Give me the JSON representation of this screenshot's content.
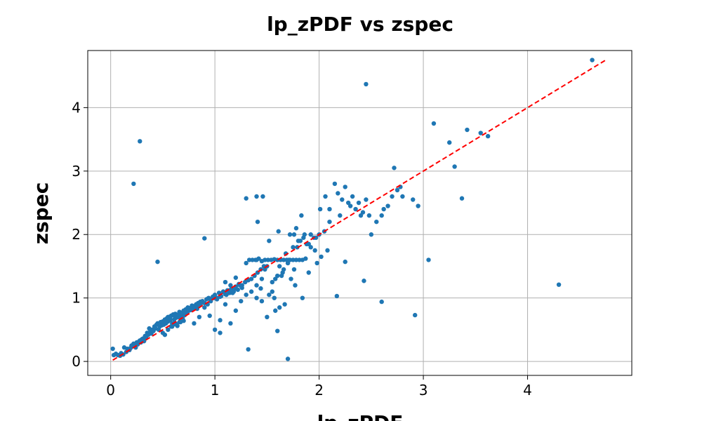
{
  "chart_data": {
    "type": "scatter",
    "title": "lp_zPDF vs zspec",
    "xlabel": "lp_zPDF",
    "ylabel": "zspec",
    "xlim": [
      -0.22,
      5.0
    ],
    "ylim": [
      -0.22,
      4.9
    ],
    "x_ticks": [
      0,
      1,
      2,
      3,
      4
    ],
    "y_ticks": [
      0,
      1,
      2,
      3,
      4
    ],
    "grid": true,
    "point_color": "#1f77b4",
    "reference_line": {
      "x": [
        0.02,
        4.75
      ],
      "y": [
        0.02,
        4.75
      ],
      "color": "#ff0000",
      "style": "dashed"
    },
    "x": [
      0.02,
      0.03,
      0.05,
      0.07,
      0.09,
      0.1,
      0.12,
      0.13,
      0.15,
      0.16,
      0.18,
      0.19,
      0.2,
      0.21,
      0.22,
      0.23,
      0.24,
      0.25,
      0.26,
      0.27,
      0.28,
      0.29,
      0.3,
      0.31,
      0.32,
      0.33,
      0.34,
      0.35,
      0.36,
      0.37,
      0.38,
      0.39,
      0.4,
      0.41,
      0.42,
      0.43,
      0.44,
      0.45,
      0.46,
      0.47,
      0.48,
      0.49,
      0.5,
      0.51,
      0.52,
      0.53,
      0.54,
      0.55,
      0.56,
      0.57,
      0.58,
      0.59,
      0.6,
      0.61,
      0.62,
      0.63,
      0.64,
      0.65,
      0.66,
      0.67,
      0.68,
      0.69,
      0.7,
      0.71,
      0.72,
      0.73,
      0.74,
      0.75,
      0.76,
      0.77,
      0.78,
      0.79,
      0.8,
      0.81,
      0.82,
      0.83,
      0.84,
      0.85,
      0.86,
      0.87,
      0.5,
      0.52,
      0.55,
      0.58,
      0.6,
      0.62,
      0.64,
      0.66,
      0.68,
      0.7,
      0.55,
      0.57,
      0.59,
      0.61,
      0.63,
      0.65,
      0.67,
      0.69,
      0.71,
      0.73,
      0.88,
      0.9,
      0.92,
      0.94,
      0.96,
      0.98,
      1.0,
      1.02,
      1.04,
      1.06,
      1.08,
      1.1,
      1.12,
      1.14,
      1.16,
      1.18,
      1.2,
      1.22,
      1.24,
      1.26,
      0.9,
      0.93,
      0.96,
      0.99,
      1.02,
      1.05,
      1.08,
      1.11,
      1.14,
      1.17,
      1.2,
      1.23,
      1.26,
      1.29,
      1.32,
      1.35,
      1.38,
      1.41,
      1.44,
      1.47,
      1.3,
      1.33,
      1.36,
      1.39,
      1.42,
      1.45,
      1.48,
      1.51,
      1.54,
      1.57,
      1.6,
      1.63,
      1.66,
      1.69,
      1.72,
      1.75,
      1.78,
      1.81,
      1.84,
      1.87,
      1.4,
      1.45,
      1.5,
      1.55,
      1.6,
      1.65,
      1.7,
      1.75,
      1.8,
      1.85,
      1.9,
      1.95,
      2.0,
      2.05,
      2.1,
      1.35,
      1.4,
      1.44,
      1.48,
      1.52,
      1.58,
      1.62,
      1.68,
      1.72,
      1.78,
      1.82,
      1.88,
      1.92,
      1.97,
      2.02,
      1.41,
      1.46,
      1.52,
      1.57,
      1.61,
      1.66,
      1.71,
      1.76,
      1.79,
      1.83,
      1.86,
      1.92,
      1.96,
      2.01,
      2.06,
      2.1,
      2.15,
      2.18,
      2.2,
      2.22,
      2.25,
      2.28,
      2.3,
      2.32,
      2.35,
      2.38,
      2.4,
      2.42,
      2.45,
      2.48,
      2.5,
      2.55,
      2.6,
      2.62,
      2.66,
      2.7,
      2.72,
      2.75,
      2.78,
      2.8,
      2.9,
      2.95,
      3.1,
      3.25,
      3.3,
      3.42,
      3.55,
      3.62,
      4.62,
      0.22,
      0.28,
      0.45,
      0.83,
      0.9,
      1.3,
      1.32,
      1.4,
      1.6,
      1.7,
      2.17,
      2.25,
      2.43,
      2.45,
      2.6,
      2.92,
      3.05,
      3.37,
      4.3,
      1.0,
      1.05,
      1.1,
      1.15,
      1.2,
      1.25,
      1.1,
      1.2,
      1.3,
      1.4,
      0.8,
      0.85,
      0.95,
      1.05,
      1.15,
      1.45,
      1.55,
      1.62,
      1.67,
      1.73,
      1.77,
      1.84,
      1.9,
      1.98,
      2.08,
      1.5,
      1.58,
      1.64,
      1.7,
      1.76
    ],
    "y": [
      0.2,
      0.1,
      0.12,
      0.1,
      0.09,
      0.13,
      0.11,
      0.22,
      0.15,
      0.2,
      0.18,
      0.21,
      0.25,
      0.24,
      0.28,
      0.26,
      0.22,
      0.3,
      0.27,
      0.31,
      0.33,
      0.3,
      0.35,
      0.36,
      0.32,
      0.4,
      0.38,
      0.45,
      0.42,
      0.52,
      0.47,
      0.44,
      0.5,
      0.48,
      0.55,
      0.52,
      0.58,
      0.6,
      0.5,
      0.55,
      0.62,
      0.57,
      0.63,
      0.58,
      0.66,
      0.6,
      0.68,
      0.63,
      0.7,
      0.65,
      0.72,
      0.6,
      0.74,
      0.66,
      0.75,
      0.69,
      0.73,
      0.7,
      0.78,
      0.72,
      0.76,
      0.75,
      0.8,
      0.77,
      0.82,
      0.78,
      0.85,
      0.8,
      0.84,
      0.81,
      0.88,
      0.83,
      0.87,
      0.86,
      0.9,
      0.88,
      0.92,
      0.9,
      0.94,
      0.92,
      0.45,
      0.42,
      0.5,
      0.55,
      0.58,
      0.6,
      0.56,
      0.62,
      0.65,
      0.64,
      0.7,
      0.67,
      0.55,
      0.72,
      0.58,
      0.74,
      0.62,
      0.68,
      0.73,
      0.76,
      0.95,
      0.92,
      0.98,
      1.0,
      0.97,
      1.02,
      1.05,
      1.0,
      1.08,
      1.03,
      1.1,
      1.06,
      1.12,
      1.08,
      1.15,
      1.1,
      1.18,
      1.13,
      1.2,
      1.16,
      0.85,
      0.9,
      0.95,
      1.0,
      0.98,
      1.02,
      1.1,
      1.05,
      1.12,
      1.08,
      1.15,
      1.22,
      1.2,
      1.25,
      1.28,
      1.3,
      1.35,
      1.4,
      1.45,
      1.5,
      1.55,
      1.6,
      1.6,
      1.6,
      1.62,
      1.58,
      1.6,
      1.6,
      1.6,
      1.61,
      1.6,
      1.6,
      1.6,
      1.6,
      1.6,
      1.6,
      1.6,
      1.6,
      1.6,
      1.62,
      1.2,
      1.3,
      1.5,
      1.25,
      1.35,
      1.4,
      1.55,
      1.8,
      1.9,
      1.95,
      1.85,
      1.95,
      2.0,
      2.05,
      2.2,
      1.1,
      1.0,
      1.15,
      1.45,
      1.05,
      1.3,
      1.5,
      1.7,
      2.0,
      2.1,
      1.9,
      1.85,
      2.0,
      1.95,
      1.65,
      2.2,
      2.6,
      1.9,
      1.0,
      2.05,
      1.45,
      1.6,
      2.0,
      1.8,
      2.3,
      2.0,
      1.8,
      1.75,
      2.4,
      2.6,
      2.4,
      2.8,
      2.65,
      2.3,
      2.55,
      2.75,
      2.5,
      2.45,
      2.6,
      2.4,
      2.5,
      2.3,
      2.35,
      2.55,
      2.3,
      2.0,
      2.2,
      2.3,
      2.4,
      2.45,
      2.6,
      3.05,
      2.7,
      2.75,
      2.6,
      2.55,
      2.45,
      3.75,
      3.45,
      3.07,
      3.65,
      3.6,
      3.55,
      4.75,
      2.8,
      3.47,
      1.57,
      0.83,
      1.94,
      2.57,
      0.19,
      2.6,
      0.48,
      0.04,
      1.03,
      1.57,
      1.27,
      4.37,
      0.94,
      0.73,
      1.6,
      2.57,
      1.21,
      0.5,
      0.65,
      0.9,
      1.2,
      0.8,
      0.95,
      1.25,
      1.32,
      1.05,
      1.6,
      0.6,
      0.7,
      0.72,
      0.45,
      0.6,
      0.95,
      1.1,
      0.85,
      0.9,
      1.3,
      1.2,
      1.0,
      1.4,
      1.55,
      1.75,
      0.7,
      0.8,
      1.35,
      1.55,
      1.45
    ]
  }
}
